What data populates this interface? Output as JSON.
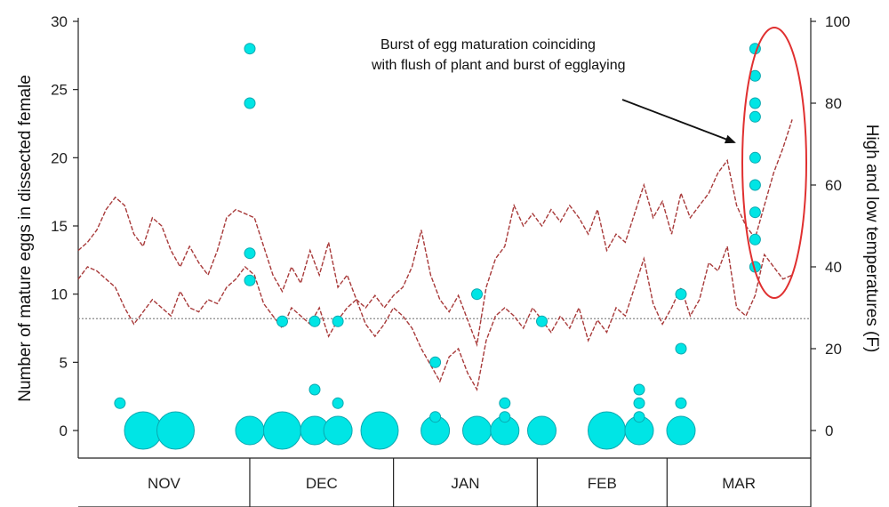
{
  "chart_data": {
    "type": "scatter",
    "title": "",
    "ylabel_left": "Number of mature eggs in dissected female",
    "ylabel_right": "High and low temperatures (F)",
    "ylim_left": [
      0,
      30
    ],
    "yticks_left": [
      "0",
      "5",
      "10",
      "15",
      "20",
      "25",
      "30"
    ],
    "ylim_right": [
      0,
      100
    ],
    "yticks_right": [
      "0",
      "20",
      "40",
      "60",
      "80",
      "100"
    ],
    "months": [
      "NOV",
      "DEC",
      "JAN",
      "FEB",
      "MAR"
    ],
    "grid": false,
    "reference_line_left_value": 8.2,
    "annotation": "Burst of egg maturation coinciding with flush of plant and burst of egglaying",
    "annotation_lines": [
      "Burst of egg maturation coinciding",
      "with flush of plant and burst of egglaying"
    ],
    "colors": {
      "points": "#00e5e5",
      "point_edge": "#0aa8b0",
      "temperature_lines": "#a83a3a",
      "highlight": "#e03030",
      "reference_line": "#888888"
    },
    "series": [
      {
        "kind": "eggs_per_dissection",
        "points": [
          {
            "date": "2008-11-07",
            "eggs": 0,
            "size": "large"
          },
          {
            "date": "2008-11-02",
            "eggs": 2,
            "size": "small"
          },
          {
            "date": "2008-11-14",
            "eggs": 0,
            "size": "large"
          },
          {
            "date": "2008-11-30",
            "eggs": 0,
            "size": "medium"
          },
          {
            "date": "2008-11-30",
            "eggs": 11,
            "size": "small"
          },
          {
            "date": "2008-11-30",
            "eggs": 13,
            "size": "small"
          },
          {
            "date": "2008-11-30",
            "eggs": 24,
            "size": "small"
          },
          {
            "date": "2008-11-30",
            "eggs": 28,
            "size": "small"
          },
          {
            "date": "2008-12-07",
            "eggs": 0,
            "size": "large"
          },
          {
            "date": "2008-12-07",
            "eggs": 8,
            "size": "small"
          },
          {
            "date": "2008-12-14",
            "eggs": 0,
            "size": "medium"
          },
          {
            "date": "2008-12-14",
            "eggs": 3,
            "size": "small"
          },
          {
            "date": "2008-12-14",
            "eggs": 8,
            "size": "small"
          },
          {
            "date": "2008-12-19",
            "eggs": 0,
            "size": "medium"
          },
          {
            "date": "2008-12-19",
            "eggs": 2,
            "size": "small"
          },
          {
            "date": "2008-12-19",
            "eggs": 8,
            "size": "small"
          },
          {
            "date": "2008-12-28",
            "eggs": 0,
            "size": "large"
          },
          {
            "date": "2009-01-09",
            "eggs": 0,
            "size": "medium"
          },
          {
            "date": "2009-01-09",
            "eggs": 1,
            "size": "small"
          },
          {
            "date": "2009-01-09",
            "eggs": 5,
            "size": "small"
          },
          {
            "date": "2009-01-18",
            "eggs": 0,
            "size": "medium"
          },
          {
            "date": "2009-01-18",
            "eggs": 10,
            "size": "small"
          },
          {
            "date": "2009-01-24",
            "eggs": 0,
            "size": "medium"
          },
          {
            "date": "2009-01-24",
            "eggs": 1,
            "size": "small"
          },
          {
            "date": "2009-01-24",
            "eggs": 2,
            "size": "small"
          },
          {
            "date": "2009-02-01",
            "eggs": 0,
            "size": "medium"
          },
          {
            "date": "2009-02-01",
            "eggs": 8,
            "size": "small"
          },
          {
            "date": "2009-02-15",
            "eggs": 0,
            "size": "large"
          },
          {
            "date": "2009-02-22",
            "eggs": 0,
            "size": "medium"
          },
          {
            "date": "2009-02-22",
            "eggs": 1,
            "size": "small"
          },
          {
            "date": "2009-02-22",
            "eggs": 2,
            "size": "small"
          },
          {
            "date": "2009-02-22",
            "eggs": 3,
            "size": "small"
          },
          {
            "date": "2009-03-03",
            "eggs": 0,
            "size": "medium"
          },
          {
            "date": "2009-03-03",
            "eggs": 2,
            "size": "small"
          },
          {
            "date": "2009-03-03",
            "eggs": 6,
            "size": "small"
          },
          {
            "date": "2009-03-03",
            "eggs": 10,
            "size": "small"
          },
          {
            "date": "2009-03-19",
            "eggs": 12,
            "size": "small"
          },
          {
            "date": "2009-03-19",
            "eggs": 14,
            "size": "small"
          },
          {
            "date": "2009-03-19",
            "eggs": 16,
            "size": "small"
          },
          {
            "date": "2009-03-19",
            "eggs": 18,
            "size": "small"
          },
          {
            "date": "2009-03-19",
            "eggs": 20,
            "size": "small"
          },
          {
            "date": "2009-03-19",
            "eggs": 23,
            "size": "small"
          },
          {
            "date": "2009-03-19",
            "eggs": 24,
            "size": "small"
          },
          {
            "date": "2009-03-19",
            "eggs": 26,
            "size": "small"
          },
          {
            "date": "2009-03-19",
            "eggs": 28,
            "size": "small"
          }
        ]
      },
      {
        "kind": "temperature_high",
        "points": [
          {
            "date": "2008-10-24",
            "temp": 44
          },
          {
            "date": "2008-10-26",
            "temp": 46
          },
          {
            "date": "2008-10-28",
            "temp": 49
          },
          {
            "date": "2008-10-30",
            "temp": 54
          },
          {
            "date": "2008-11-01",
            "temp": 57
          },
          {
            "date": "2008-11-03",
            "temp": 55
          },
          {
            "date": "2008-11-05",
            "temp": 48
          },
          {
            "date": "2008-11-07",
            "temp": 45
          },
          {
            "date": "2008-11-09",
            "temp": 52
          },
          {
            "date": "2008-11-11",
            "temp": 50
          },
          {
            "date": "2008-11-13",
            "temp": 44
          },
          {
            "date": "2008-11-15",
            "temp": 40
          },
          {
            "date": "2008-11-17",
            "temp": 45
          },
          {
            "date": "2008-11-19",
            "temp": 41
          },
          {
            "date": "2008-11-21",
            "temp": 38
          },
          {
            "date": "2008-11-23",
            "temp": 44
          },
          {
            "date": "2008-11-25",
            "temp": 52
          },
          {
            "date": "2008-11-27",
            "temp": 54
          },
          {
            "date": "2008-11-29",
            "temp": 53
          },
          {
            "date": "2008-12-01",
            "temp": 52
          },
          {
            "date": "2008-12-03",
            "temp": 45
          },
          {
            "date": "2008-12-05",
            "temp": 38
          },
          {
            "date": "2008-12-07",
            "temp": 34
          },
          {
            "date": "2008-12-09",
            "temp": 40
          },
          {
            "date": "2008-12-11",
            "temp": 36
          },
          {
            "date": "2008-12-13",
            "temp": 44
          },
          {
            "date": "2008-12-15",
            "temp": 38
          },
          {
            "date": "2008-12-17",
            "temp": 46
          },
          {
            "date": "2008-12-19",
            "temp": 35
          },
          {
            "date": "2008-12-21",
            "temp": 38
          },
          {
            "date": "2008-12-23",
            "temp": 32
          },
          {
            "date": "2008-12-25",
            "temp": 30
          },
          {
            "date": "2008-12-27",
            "temp": 33
          },
          {
            "date": "2008-12-29",
            "temp": 30
          },
          {
            "date": "2008-12-31",
            "temp": 33
          },
          {
            "date": "2009-01-02",
            "temp": 35
          },
          {
            "date": "2009-01-04",
            "temp": 40
          },
          {
            "date": "2009-01-06",
            "temp": 49
          },
          {
            "date": "2009-01-08",
            "temp": 38
          },
          {
            "date": "2009-01-10",
            "temp": 32
          },
          {
            "date": "2009-01-12",
            "temp": 29
          },
          {
            "date": "2009-01-14",
            "temp": 33
          },
          {
            "date": "2009-01-16",
            "temp": 27
          },
          {
            "date": "2009-01-18",
            "temp": 21
          },
          {
            "date": "2009-01-20",
            "temp": 35
          },
          {
            "date": "2009-01-22",
            "temp": 42
          },
          {
            "date": "2009-01-24",
            "temp": 45
          },
          {
            "date": "2009-01-26",
            "temp": 55
          },
          {
            "date": "2009-01-28",
            "temp": 50
          },
          {
            "date": "2009-01-30",
            "temp": 53
          },
          {
            "date": "2009-02-01",
            "temp": 50
          },
          {
            "date": "2009-02-03",
            "temp": 54
          },
          {
            "date": "2009-02-05",
            "temp": 51
          },
          {
            "date": "2009-02-07",
            "temp": 55
          },
          {
            "date": "2009-02-09",
            "temp": 52
          },
          {
            "date": "2009-02-11",
            "temp": 48
          },
          {
            "date": "2009-02-13",
            "temp": 54
          },
          {
            "date": "2009-02-15",
            "temp": 44
          },
          {
            "date": "2009-02-17",
            "temp": 48
          },
          {
            "date": "2009-02-19",
            "temp": 46
          },
          {
            "date": "2009-02-21",
            "temp": 53
          },
          {
            "date": "2009-02-23",
            "temp": 60
          },
          {
            "date": "2009-02-25",
            "temp": 52
          },
          {
            "date": "2009-02-27",
            "temp": 56
          },
          {
            "date": "2009-03-01",
            "temp": 48
          },
          {
            "date": "2009-03-03",
            "temp": 58
          },
          {
            "date": "2009-03-05",
            "temp": 52
          },
          {
            "date": "2009-03-07",
            "temp": 55
          },
          {
            "date": "2009-03-09",
            "temp": 58
          },
          {
            "date": "2009-03-11",
            "temp": 63
          },
          {
            "date": "2009-03-13",
            "temp": 66
          },
          {
            "date": "2009-03-15",
            "temp": 55
          },
          {
            "date": "2009-03-17",
            "temp": 50
          },
          {
            "date": "2009-03-19",
            "temp": 47
          },
          {
            "date": "2009-03-21",
            "temp": 55
          },
          {
            "date": "2009-03-23",
            "temp": 63
          },
          {
            "date": "2009-03-25",
            "temp": 69
          },
          {
            "date": "2009-03-27",
            "temp": 76
          }
        ]
      },
      {
        "kind": "temperature_low",
        "points": [
          {
            "date": "2008-10-24",
            "temp": 37
          },
          {
            "date": "2008-10-26",
            "temp": 40
          },
          {
            "date": "2008-10-28",
            "temp": 39
          },
          {
            "date": "2008-10-30",
            "temp": 37
          },
          {
            "date": "2008-11-01",
            "temp": 35
          },
          {
            "date": "2008-11-03",
            "temp": 30
          },
          {
            "date": "2008-11-05",
            "temp": 26
          },
          {
            "date": "2008-11-07",
            "temp": 29
          },
          {
            "date": "2008-11-09",
            "temp": 32
          },
          {
            "date": "2008-11-11",
            "temp": 30
          },
          {
            "date": "2008-11-13",
            "temp": 28
          },
          {
            "date": "2008-11-15",
            "temp": 34
          },
          {
            "date": "2008-11-17",
            "temp": 30
          },
          {
            "date": "2008-11-19",
            "temp": 29
          },
          {
            "date": "2008-11-21",
            "temp": 32
          },
          {
            "date": "2008-11-23",
            "temp": 31
          },
          {
            "date": "2008-11-25",
            "temp": 35
          },
          {
            "date": "2008-11-27",
            "temp": 37
          },
          {
            "date": "2008-11-29",
            "temp": 40
          },
          {
            "date": "2008-12-01",
            "temp": 38
          },
          {
            "date": "2008-12-03",
            "temp": 31
          },
          {
            "date": "2008-12-05",
            "temp": 28
          },
          {
            "date": "2008-12-07",
            "temp": 25
          },
          {
            "date": "2008-12-09",
            "temp": 30
          },
          {
            "date": "2008-12-11",
            "temp": 28
          },
          {
            "date": "2008-12-13",
            "temp": 26
          },
          {
            "date": "2008-12-15",
            "temp": 30
          },
          {
            "date": "2008-12-17",
            "temp": 23
          },
          {
            "date": "2008-12-19",
            "temp": 27
          },
          {
            "date": "2008-12-21",
            "temp": 30
          },
          {
            "date": "2008-12-23",
            "temp": 32
          },
          {
            "date": "2008-12-25",
            "temp": 26
          },
          {
            "date": "2008-12-27",
            "temp": 23
          },
          {
            "date": "2008-12-29",
            "temp": 26
          },
          {
            "date": "2008-12-31",
            "temp": 30
          },
          {
            "date": "2009-01-02",
            "temp": 28
          },
          {
            "date": "2009-01-04",
            "temp": 25
          },
          {
            "date": "2009-01-06",
            "temp": 20
          },
          {
            "date": "2009-01-08",
            "temp": 16
          },
          {
            "date": "2009-01-10",
            "temp": 12
          },
          {
            "date": "2009-01-12",
            "temp": 18
          },
          {
            "date": "2009-01-14",
            "temp": 20
          },
          {
            "date": "2009-01-16",
            "temp": 14
          },
          {
            "date": "2009-01-18",
            "temp": 10
          },
          {
            "date": "2009-01-20",
            "temp": 22
          },
          {
            "date": "2009-01-22",
            "temp": 28
          },
          {
            "date": "2009-01-24",
            "temp": 30
          },
          {
            "date": "2009-01-26",
            "temp": 28
          },
          {
            "date": "2009-01-28",
            "temp": 25
          },
          {
            "date": "2009-01-30",
            "temp": 30
          },
          {
            "date": "2009-02-01",
            "temp": 27
          },
          {
            "date": "2009-02-03",
            "temp": 24
          },
          {
            "date": "2009-02-05",
            "temp": 28
          },
          {
            "date": "2009-02-07",
            "temp": 25
          },
          {
            "date": "2009-02-09",
            "temp": 30
          },
          {
            "date": "2009-02-11",
            "temp": 22
          },
          {
            "date": "2009-02-13",
            "temp": 27
          },
          {
            "date": "2009-02-15",
            "temp": 24
          },
          {
            "date": "2009-02-17",
            "temp": 30
          },
          {
            "date": "2009-02-19",
            "temp": 28
          },
          {
            "date": "2009-02-21",
            "temp": 35
          },
          {
            "date": "2009-02-23",
            "temp": 42
          },
          {
            "date": "2009-02-25",
            "temp": 31
          },
          {
            "date": "2009-02-27",
            "temp": 26
          },
          {
            "date": "2009-03-01",
            "temp": 30
          },
          {
            "date": "2009-03-03",
            "temp": 35
          },
          {
            "date": "2009-03-05",
            "temp": 28
          },
          {
            "date": "2009-03-07",
            "temp": 32
          },
          {
            "date": "2009-03-09",
            "temp": 41
          },
          {
            "date": "2009-03-11",
            "temp": 39
          },
          {
            "date": "2009-03-13",
            "temp": 45
          },
          {
            "date": "2009-03-15",
            "temp": 30
          },
          {
            "date": "2009-03-17",
            "temp": 28
          },
          {
            "date": "2009-03-19",
            "temp": 33
          },
          {
            "date": "2009-03-21",
            "temp": 43
          },
          {
            "date": "2009-03-23",
            "temp": 40
          },
          {
            "date": "2009-03-25",
            "temp": 37
          },
          {
            "date": "2009-03-27",
            "temp": 38
          }
        ]
      }
    ]
  }
}
